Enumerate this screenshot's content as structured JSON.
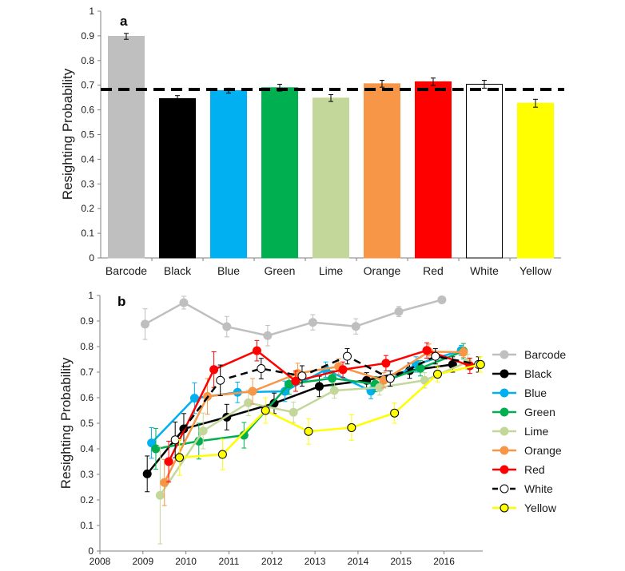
{
  "chart_data": [
    {
      "type": "bar",
      "panel_label": "a",
      "ylabel": "Resighting Probability",
      "ylim": [
        0,
        1
      ],
      "yticks": [
        "0",
        "0.1",
        "0.2",
        "0.3",
        "0.4",
        "0.5",
        "0.6",
        "0.7",
        "0.8",
        "0.9",
        "1"
      ],
      "categories": [
        "Barcode",
        "Black",
        "Blue",
        "Green",
        "Lime",
        "Orange",
        "Red",
        "White",
        "Yellow"
      ],
      "values": [
        0.898,
        0.646,
        0.678,
        0.69,
        0.648,
        0.706,
        0.714,
        0.704,
        0.627
      ],
      "errors": [
        0.012,
        0.012,
        0.01,
        0.014,
        0.014,
        0.014,
        0.015,
        0.016,
        0.016
      ],
      "colors": [
        "#bfbfbf",
        "#000000",
        "#00b0f0",
        "#00b050",
        "#c4d79b",
        "#f79646",
        "#ff0000",
        "#ffffff",
        "#ffff00"
      ],
      "reference_line": 0.683
    },
    {
      "type": "line",
      "panel_label": "b",
      "ylabel": "Resighting Probability",
      "ylim": [
        0,
        1
      ],
      "xlim": [
        2008,
        2016.9
      ],
      "yticks": [
        "0",
        "0.1",
        "0.2",
        "0.3",
        "0.4",
        "0.5",
        "0.6",
        "0.7",
        "0.8",
        "0.9",
        "1"
      ],
      "xticks": [
        "2008",
        "2009",
        "2010",
        "2011",
        "2012",
        "2013",
        "2014",
        "2015",
        "2016"
      ],
      "legend_position": "right",
      "series": [
        {
          "name": "Barcode",
          "color": "#bfbfbf",
          "marker_fill": "#bfbfbf",
          "dashed": false,
          "x": [
            2009.05,
            2009.95,
            2010.95,
            2011.9,
            2012.95,
            2013.95,
            2014.95,
            2015.95
          ],
          "y": [
            0.888,
            0.972,
            0.878,
            0.843,
            0.895,
            0.879,
            0.937,
            0.983
          ],
          "err": [
            0.06,
            0.025,
            0.04,
            0.04,
            0.03,
            0.03,
            0.02,
            0.0
          ]
        },
        {
          "name": "Black",
          "color": "#000000",
          "marker_fill": "#000000",
          "dashed": false,
          "x": [
            2009.1,
            2009.95,
            2010.95,
            2012.05,
            2013.1,
            2014.2,
            2015.2,
            2016.2
          ],
          "y": [
            0.302,
            0.478,
            0.524,
            0.578,
            0.644,
            0.668,
            0.706,
            0.73
          ],
          "err": [
            0.07,
            0.06,
            0.05,
            0.04,
            0.04,
            0.03,
            0.03,
            0.03
          ]
        },
        {
          "name": "Blue",
          "color": "#00b0f0",
          "marker_fill": "#00b0f0",
          "dashed": false,
          "x": [
            2009.2,
            2010.2,
            2011.2,
            2012.3,
            2013.25,
            2014.3,
            2015.35,
            2016.4
          ],
          "y": [
            0.423,
            0.598,
            0.621,
            0.625,
            0.71,
            0.626,
            0.73,
            0.785
          ],
          "err": [
            0.06,
            0.06,
            0.04,
            0.04,
            0.03,
            0.03,
            0.03,
            0.02
          ]
        },
        {
          "name": "Green",
          "color": "#00b050",
          "marker_fill": "#00b050",
          "dashed": false,
          "x": [
            2009.3,
            2010.3,
            2011.35,
            2012.4,
            2013.4,
            2014.4,
            2015.45,
            2016.45
          ],
          "y": [
            0.4,
            0.43,
            0.453,
            0.653,
            0.676,
            0.653,
            0.715,
            0.782
          ],
          "err": [
            0.08,
            0.07,
            0.05,
            0.04,
            0.03,
            0.03,
            0.03,
            0.03
          ]
        },
        {
          "name": "Lime",
          "color": "#c4d79b",
          "marker_fill": "#c4d79b",
          "dashed": false,
          "x": [
            2009.4,
            2010.4,
            2011.45,
            2012.5,
            2013.45,
            2014.5,
            2015.55,
            2016.55
          ],
          "y": [
            0.218,
            0.47,
            0.58,
            0.543,
            0.628,
            0.64,
            0.668,
            0.74
          ],
          "err": [
            0.19,
            0.07,
            0.05,
            0.04,
            0.03,
            0.03,
            0.03,
            0.03
          ]
        },
        {
          "name": "Orange",
          "color": "#f79646",
          "marker_fill": "#f79646",
          "dashed": false,
          "x": [
            2009.5,
            2010.5,
            2011.55,
            2012.6,
            2013.55,
            2014.6,
            2015.65,
            2016.45
          ],
          "y": [
            0.268,
            0.605,
            0.625,
            0.695,
            0.722,
            0.668,
            0.78,
            0.778
          ],
          "err": [
            0.09,
            0.07,
            0.05,
            0.04,
            0.03,
            0.03,
            0.03,
            0.02
          ]
        },
        {
          "name": "Red",
          "color": "#ff0000",
          "marker_fill": "#ff0000",
          "dashed": false,
          "x": [
            2009.6,
            2010.65,
            2011.65,
            2012.55,
            2013.65,
            2014.65,
            2015.6,
            2016.6
          ],
          "y": [
            0.35,
            0.71,
            0.784,
            0.665,
            0.71,
            0.735,
            0.785,
            0.725
          ],
          "err": [
            0.08,
            0.07,
            0.04,
            0.04,
            0.03,
            0.03,
            0.03,
            0.03
          ]
        },
        {
          "name": "White",
          "color": "#000000",
          "marker_fill": "#ffffff",
          "dashed": true,
          "x": [
            2009.75,
            2010.8,
            2011.75,
            2012.7,
            2013.75,
            2014.75,
            2015.8,
            2016.8
          ],
          "y": [
            0.435,
            0.668,
            0.714,
            0.685,
            0.762,
            0.675,
            0.762,
            0.73
          ],
          "err": [
            0.07,
            0.06,
            0.04,
            0.04,
            0.03,
            0.03,
            0.03,
            0.03
          ]
        },
        {
          "name": "Yellow",
          "color": "#ffff00",
          "marker_fill": "#ffff00",
          "dashed": false,
          "x": [
            2009.85,
            2010.85,
            2011.85,
            2012.85,
            2013.85,
            2014.85,
            2015.85,
            2016.85
          ],
          "y": [
            0.366,
            0.378,
            0.55,
            0.468,
            0.483,
            0.54,
            0.692,
            0.73
          ],
          "err": [
            0.07,
            0.06,
            0.05,
            0.05,
            0.05,
            0.04,
            0.03,
            0.03
          ]
        }
      ]
    }
  ]
}
